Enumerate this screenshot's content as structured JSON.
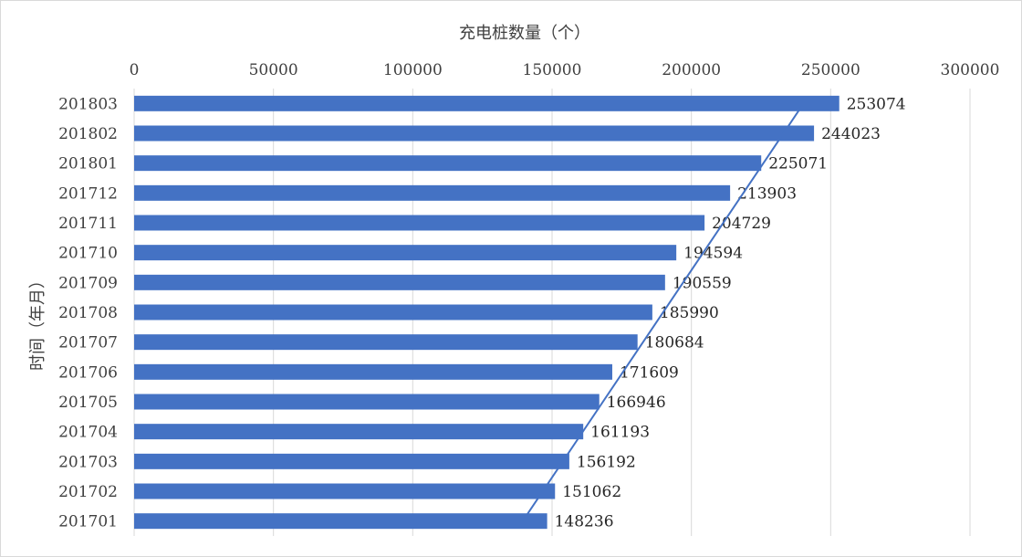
{
  "chart_data": {
    "type": "bar",
    "orientation": "horizontal",
    "title": "",
    "xlabel": "充电桩数量（个）",
    "ylabel": "时间（年月）",
    "xlim": [
      0,
      300000
    ],
    "x_ticks": [
      0,
      50000,
      100000,
      150000,
      200000,
      250000,
      300000
    ],
    "x_axis_position": "top",
    "grid": true,
    "legend": "none",
    "bar_color": "#4472C4",
    "trendline": {
      "type": "linear",
      "color": "#4472C4"
    },
    "categories": [
      "201803",
      "201802",
      "201801",
      "201712",
      "201711",
      "201710",
      "201709",
      "201708",
      "201707",
      "201706",
      "201705",
      "201704",
      "201703",
      "201702",
      "201701"
    ],
    "values": [
      253074,
      244023,
      225071,
      213903,
      204729,
      194594,
      190559,
      185990,
      180684,
      171609,
      166946,
      161193,
      156192,
      151062,
      148236
    ],
    "data_labels": [
      "253074",
      "244023",
      "225071",
      "213903",
      "204729",
      "194594",
      "190559",
      "185990",
      "180684",
      "171609",
      "166946",
      "161193",
      "156192",
      "151062",
      "148236"
    ]
  }
}
